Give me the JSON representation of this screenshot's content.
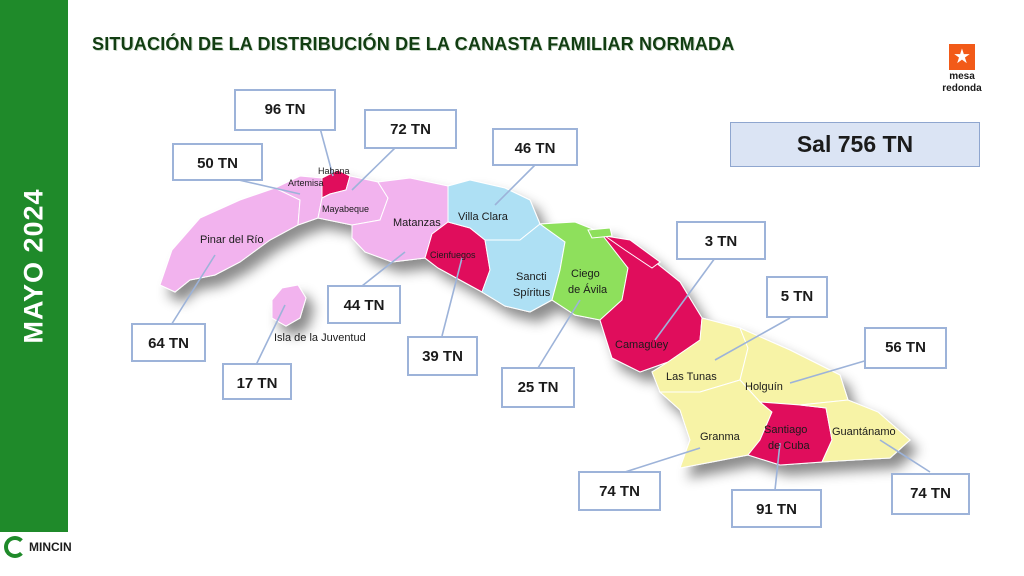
{
  "sidebar": {
    "label": "MAYO 2024"
  },
  "title": "SITUACIÓN DE LA DISTRIBUCIÓN DE LA CANASTA FAMILIAR NORMADA",
  "logo": {
    "line1": "mesa",
    "line2": "redonda",
    "icon": "star-icon",
    "color": "#f25a18"
  },
  "footer": {
    "name": "MINCIN",
    "icon": "mincin-logo-icon"
  },
  "summary": "Sal 756 TN",
  "colors": {
    "sidebar": "#1f8a2a",
    "pink": "#f2b3ee",
    "magenta": "#e0095c",
    "blue": "#aee0f4",
    "green": "#8ee05c",
    "yellow": "#f7f3a6"
  },
  "provinces": {
    "pinar": "Pinar del Río",
    "artemisa": "Artemisa",
    "habana": "Habana",
    "mayabeque": "Mayabeque",
    "matanzas": "Matanzas",
    "cienfuegos": "Cienfuegos",
    "villaclara": "Villa Clara",
    "sancti1": "Sancti",
    "sancti2": "Spíritus",
    "ciego1": "Ciego",
    "ciego2": "de Ávila",
    "camaguey": "Camagüey",
    "lastunas": "Las Tunas",
    "holguin": "Holguín",
    "granma": "Granma",
    "santiago1": "Santiago",
    "santiago2": "de Cuba",
    "guantanamo": "Guantánamo",
    "isla": "Isla de la Juventud"
  },
  "labels": {
    "habana": "96 TN",
    "mayabeque": "72 TN",
    "artemisa": "50 TN",
    "villaclara": "46  TN",
    "pinar": "64 TN",
    "matanzas": "44 TN",
    "isla": "17 TN",
    "cienfuegos": "39 TN",
    "ciego": "25 TN",
    "camaguey": "3 TN",
    "lastunas": "5 TN",
    "holguin": "56 TN",
    "granma": "74 TN",
    "santiago": "91  TN",
    "guantanamo": "74 TN"
  }
}
